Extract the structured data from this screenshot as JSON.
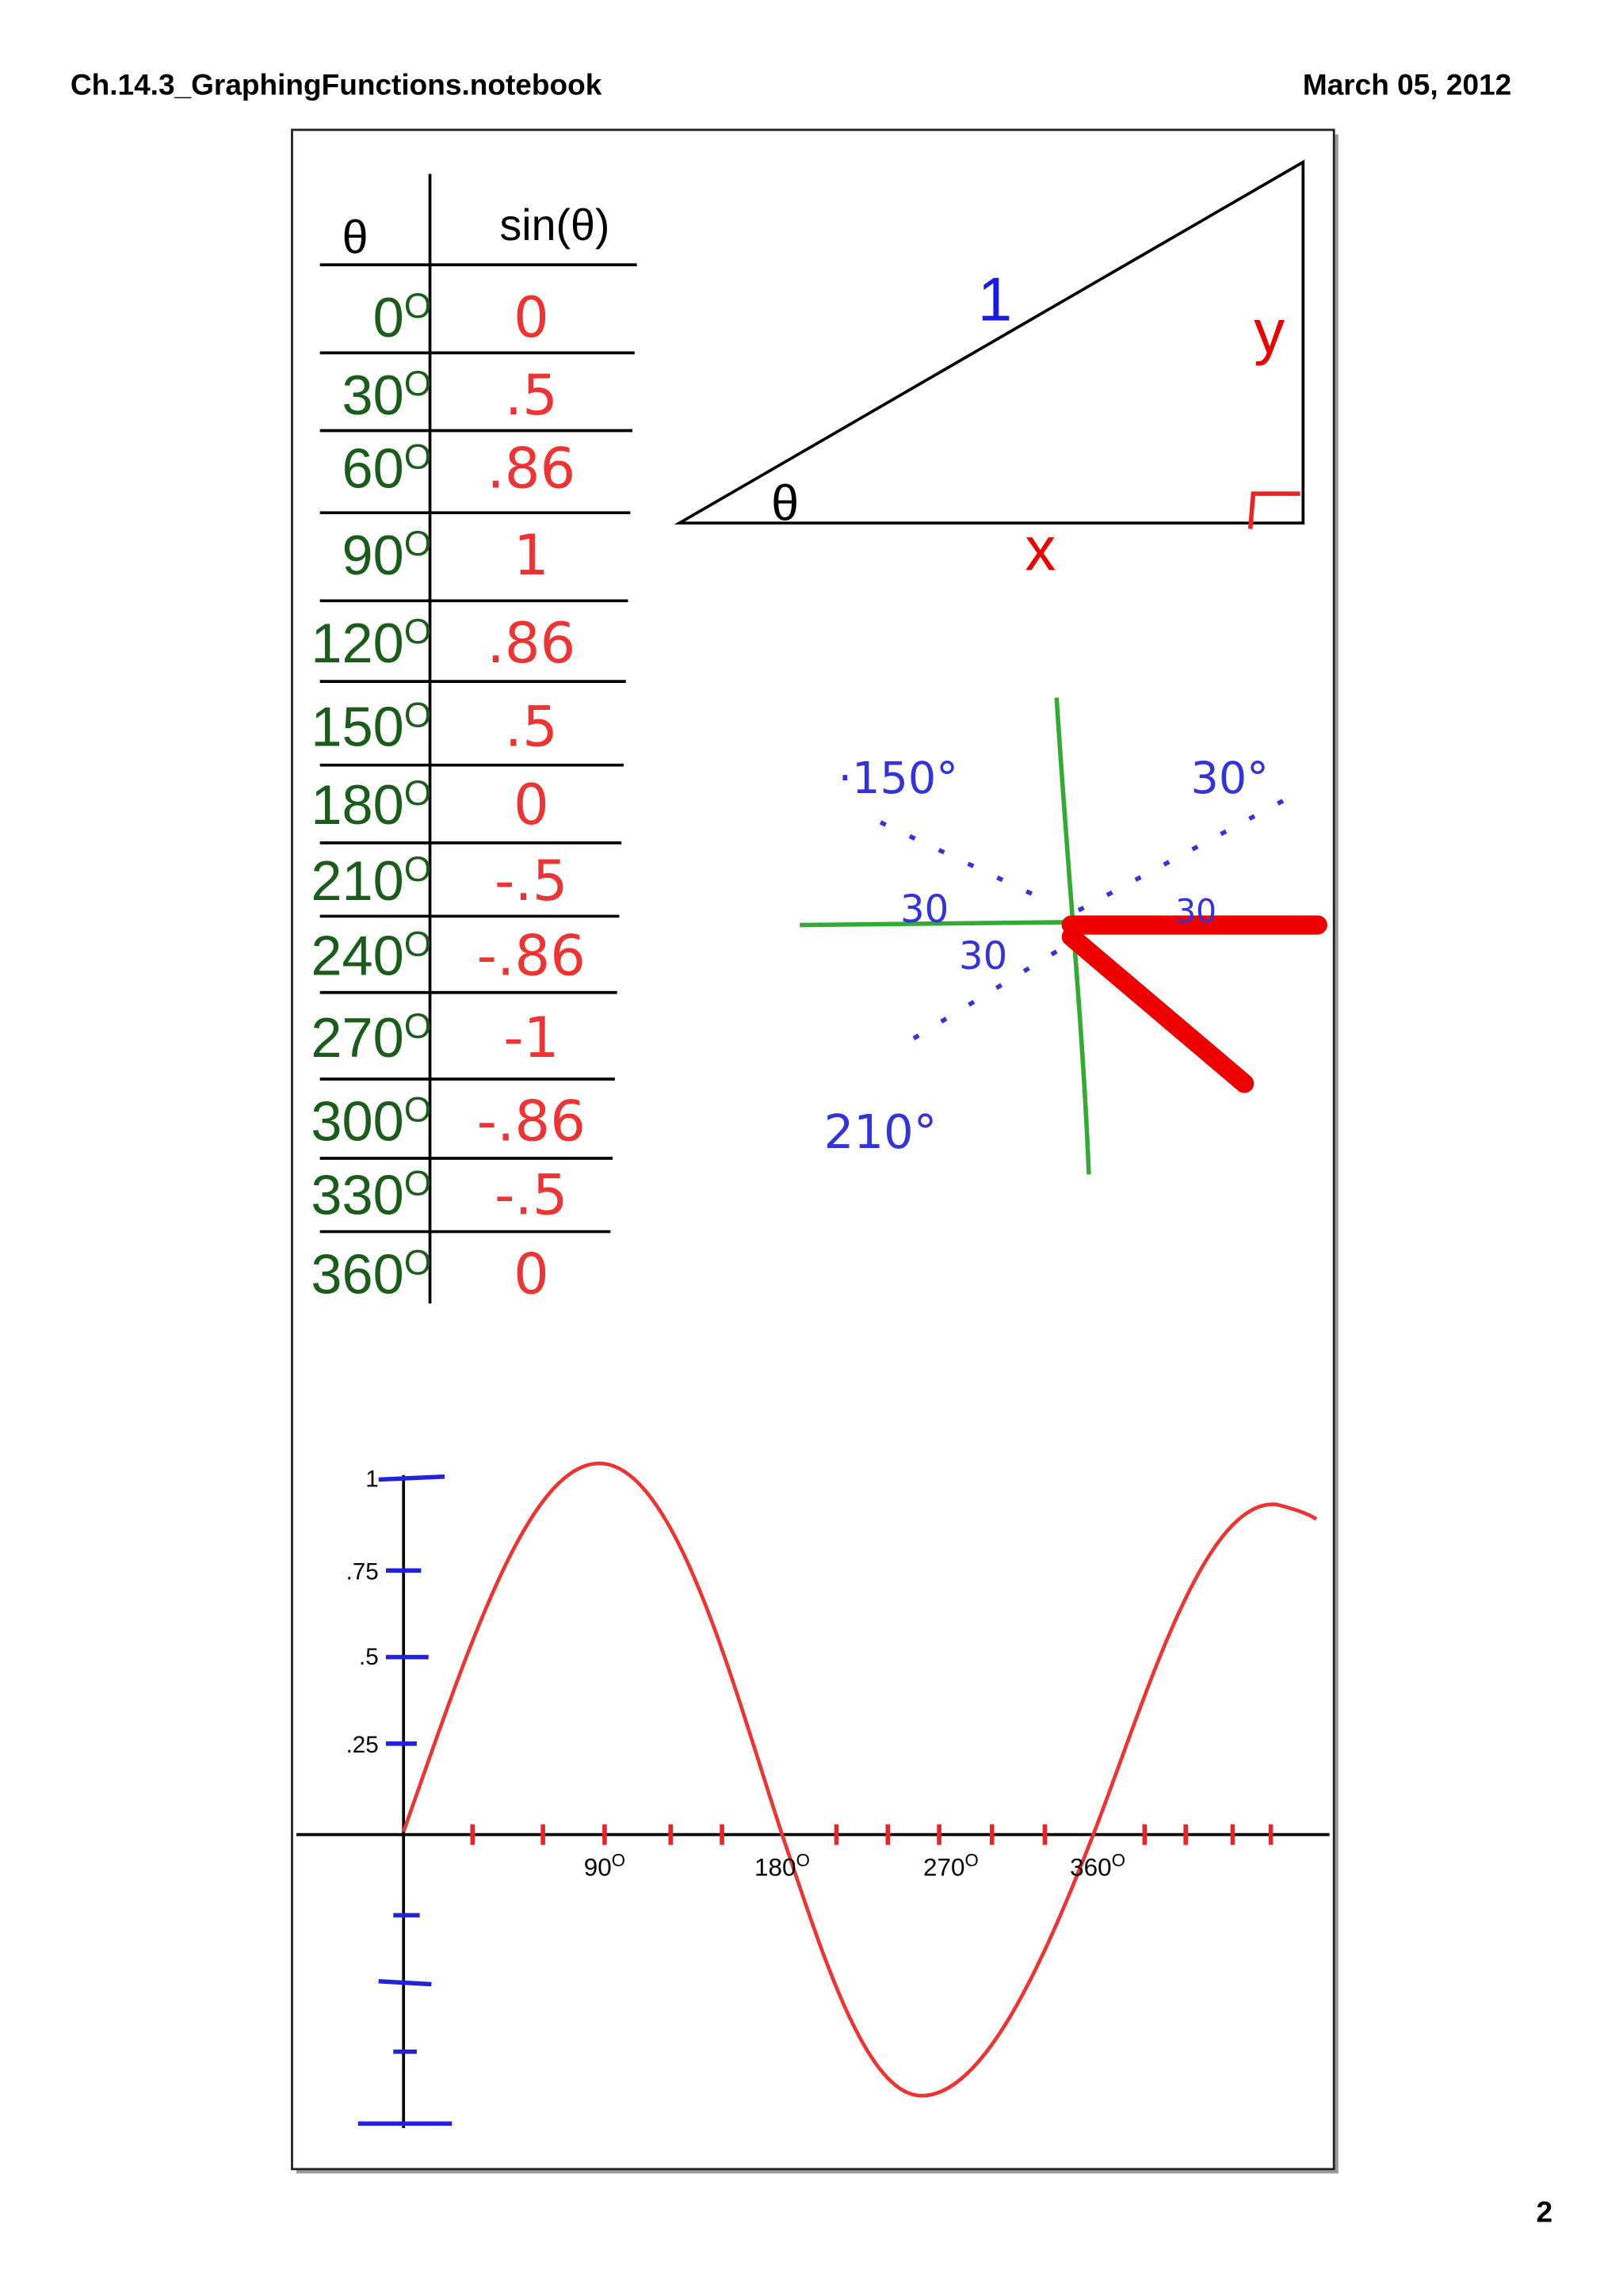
{
  "header": {
    "file_name": "Ch.14.3_GraphingFunctions.notebook",
    "date": "March 05, 2012"
  },
  "page_number": "2",
  "table": {
    "headers": [
      "θ",
      "sin(θ)"
    ],
    "degree_mark": "O",
    "rows": [
      [
        "0",
        "0"
      ],
      [
        "30",
        ".5"
      ],
      [
        "60",
        ".86"
      ],
      [
        "90",
        "1"
      ],
      [
        "120",
        ".86"
      ],
      [
        "150",
        ".5"
      ],
      [
        "180",
        "0"
      ],
      [
        "210",
        "-.5"
      ],
      [
        "240",
        "-.86"
      ],
      [
        "270",
        "-1"
      ],
      [
        "300",
        "-.86"
      ],
      [
        "330",
        "-.5"
      ],
      [
        "360",
        "0"
      ]
    ]
  },
  "triangle": {
    "hypotenuse": "1",
    "opposite": "y",
    "adjacent": "x",
    "angle": "θ"
  },
  "unit_circle": {
    "labels": [
      "·150°",
      "30°",
      "30",
      "30",
      "30",
      "210°"
    ]
  },
  "graph": {
    "y_labels": [
      "1",
      ".75",
      ".5",
      ".25"
    ],
    "x_labels": [
      "90",
      "180",
      "270",
      "360"
    ]
  }
}
